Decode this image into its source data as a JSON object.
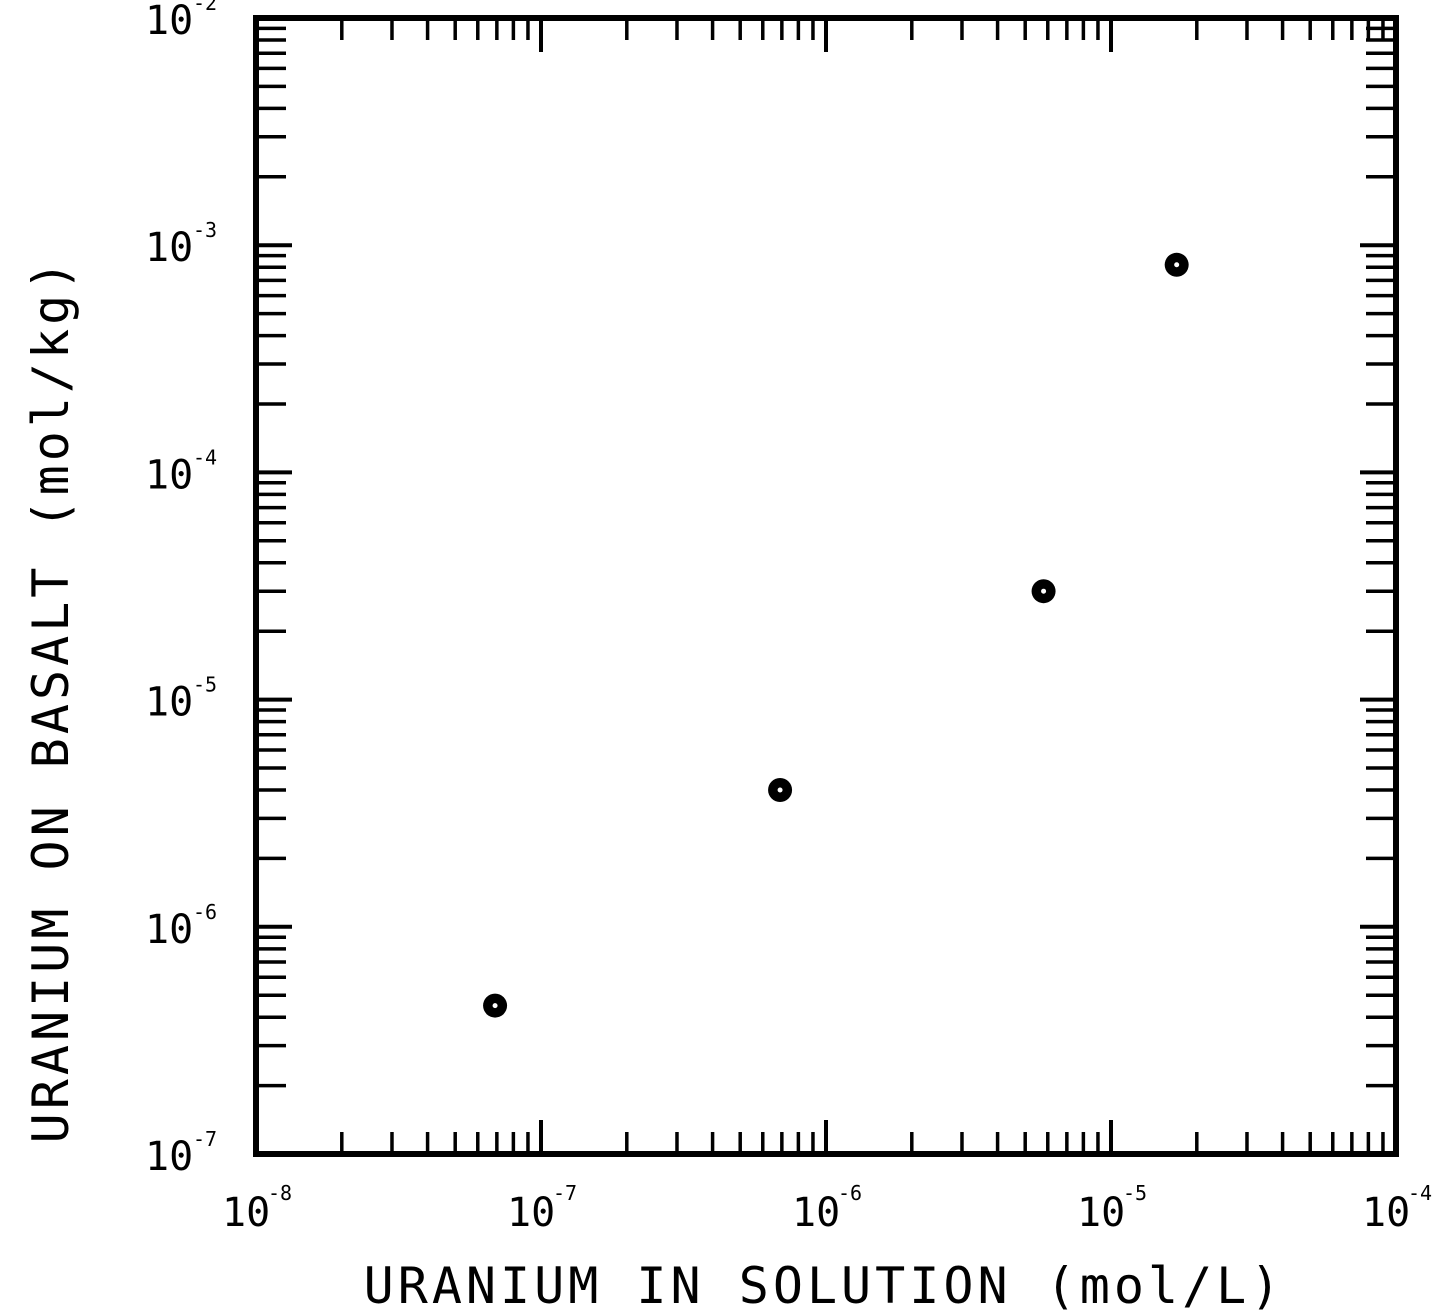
{
  "chart_data": {
    "type": "scatter",
    "xlabel": "URANIUM IN SOLUTION (mol/L)",
    "ylabel": "URANIUM ON BASALT (mol/kg)",
    "x_scale": "log",
    "y_scale": "log",
    "xlim": [
      1e-08,
      0.0001
    ],
    "ylim": [
      1e-07,
      0.01
    ],
    "x_ticks": [
      {
        "base": "10",
        "exp": "-8"
      },
      {
        "base": "10",
        "exp": "-7"
      },
      {
        "base": "10",
        "exp": "-6"
      },
      {
        "base": "10",
        "exp": "-5"
      },
      {
        "base": "10",
        "exp": "-4"
      }
    ],
    "y_ticks": [
      {
        "base": "10",
        "exp": "-7"
      },
      {
        "base": "10",
        "exp": "-6"
      },
      {
        "base": "10",
        "exp": "-5"
      },
      {
        "base": "10",
        "exp": "-4"
      },
      {
        "base": "10",
        "exp": "-3"
      },
      {
        "base": "10",
        "exp": "-2"
      }
    ],
    "grid": false,
    "points": [
      {
        "x": 6.9e-08,
        "y": 4.5e-07
      },
      {
        "x": 6.9e-07,
        "y": 4e-06
      },
      {
        "x": 5.8e-06,
        "y": 3e-05
      },
      {
        "x": 1.7e-05,
        "y": 0.00082
      }
    ],
    "marker": "filled-circle",
    "color": "#000000"
  }
}
